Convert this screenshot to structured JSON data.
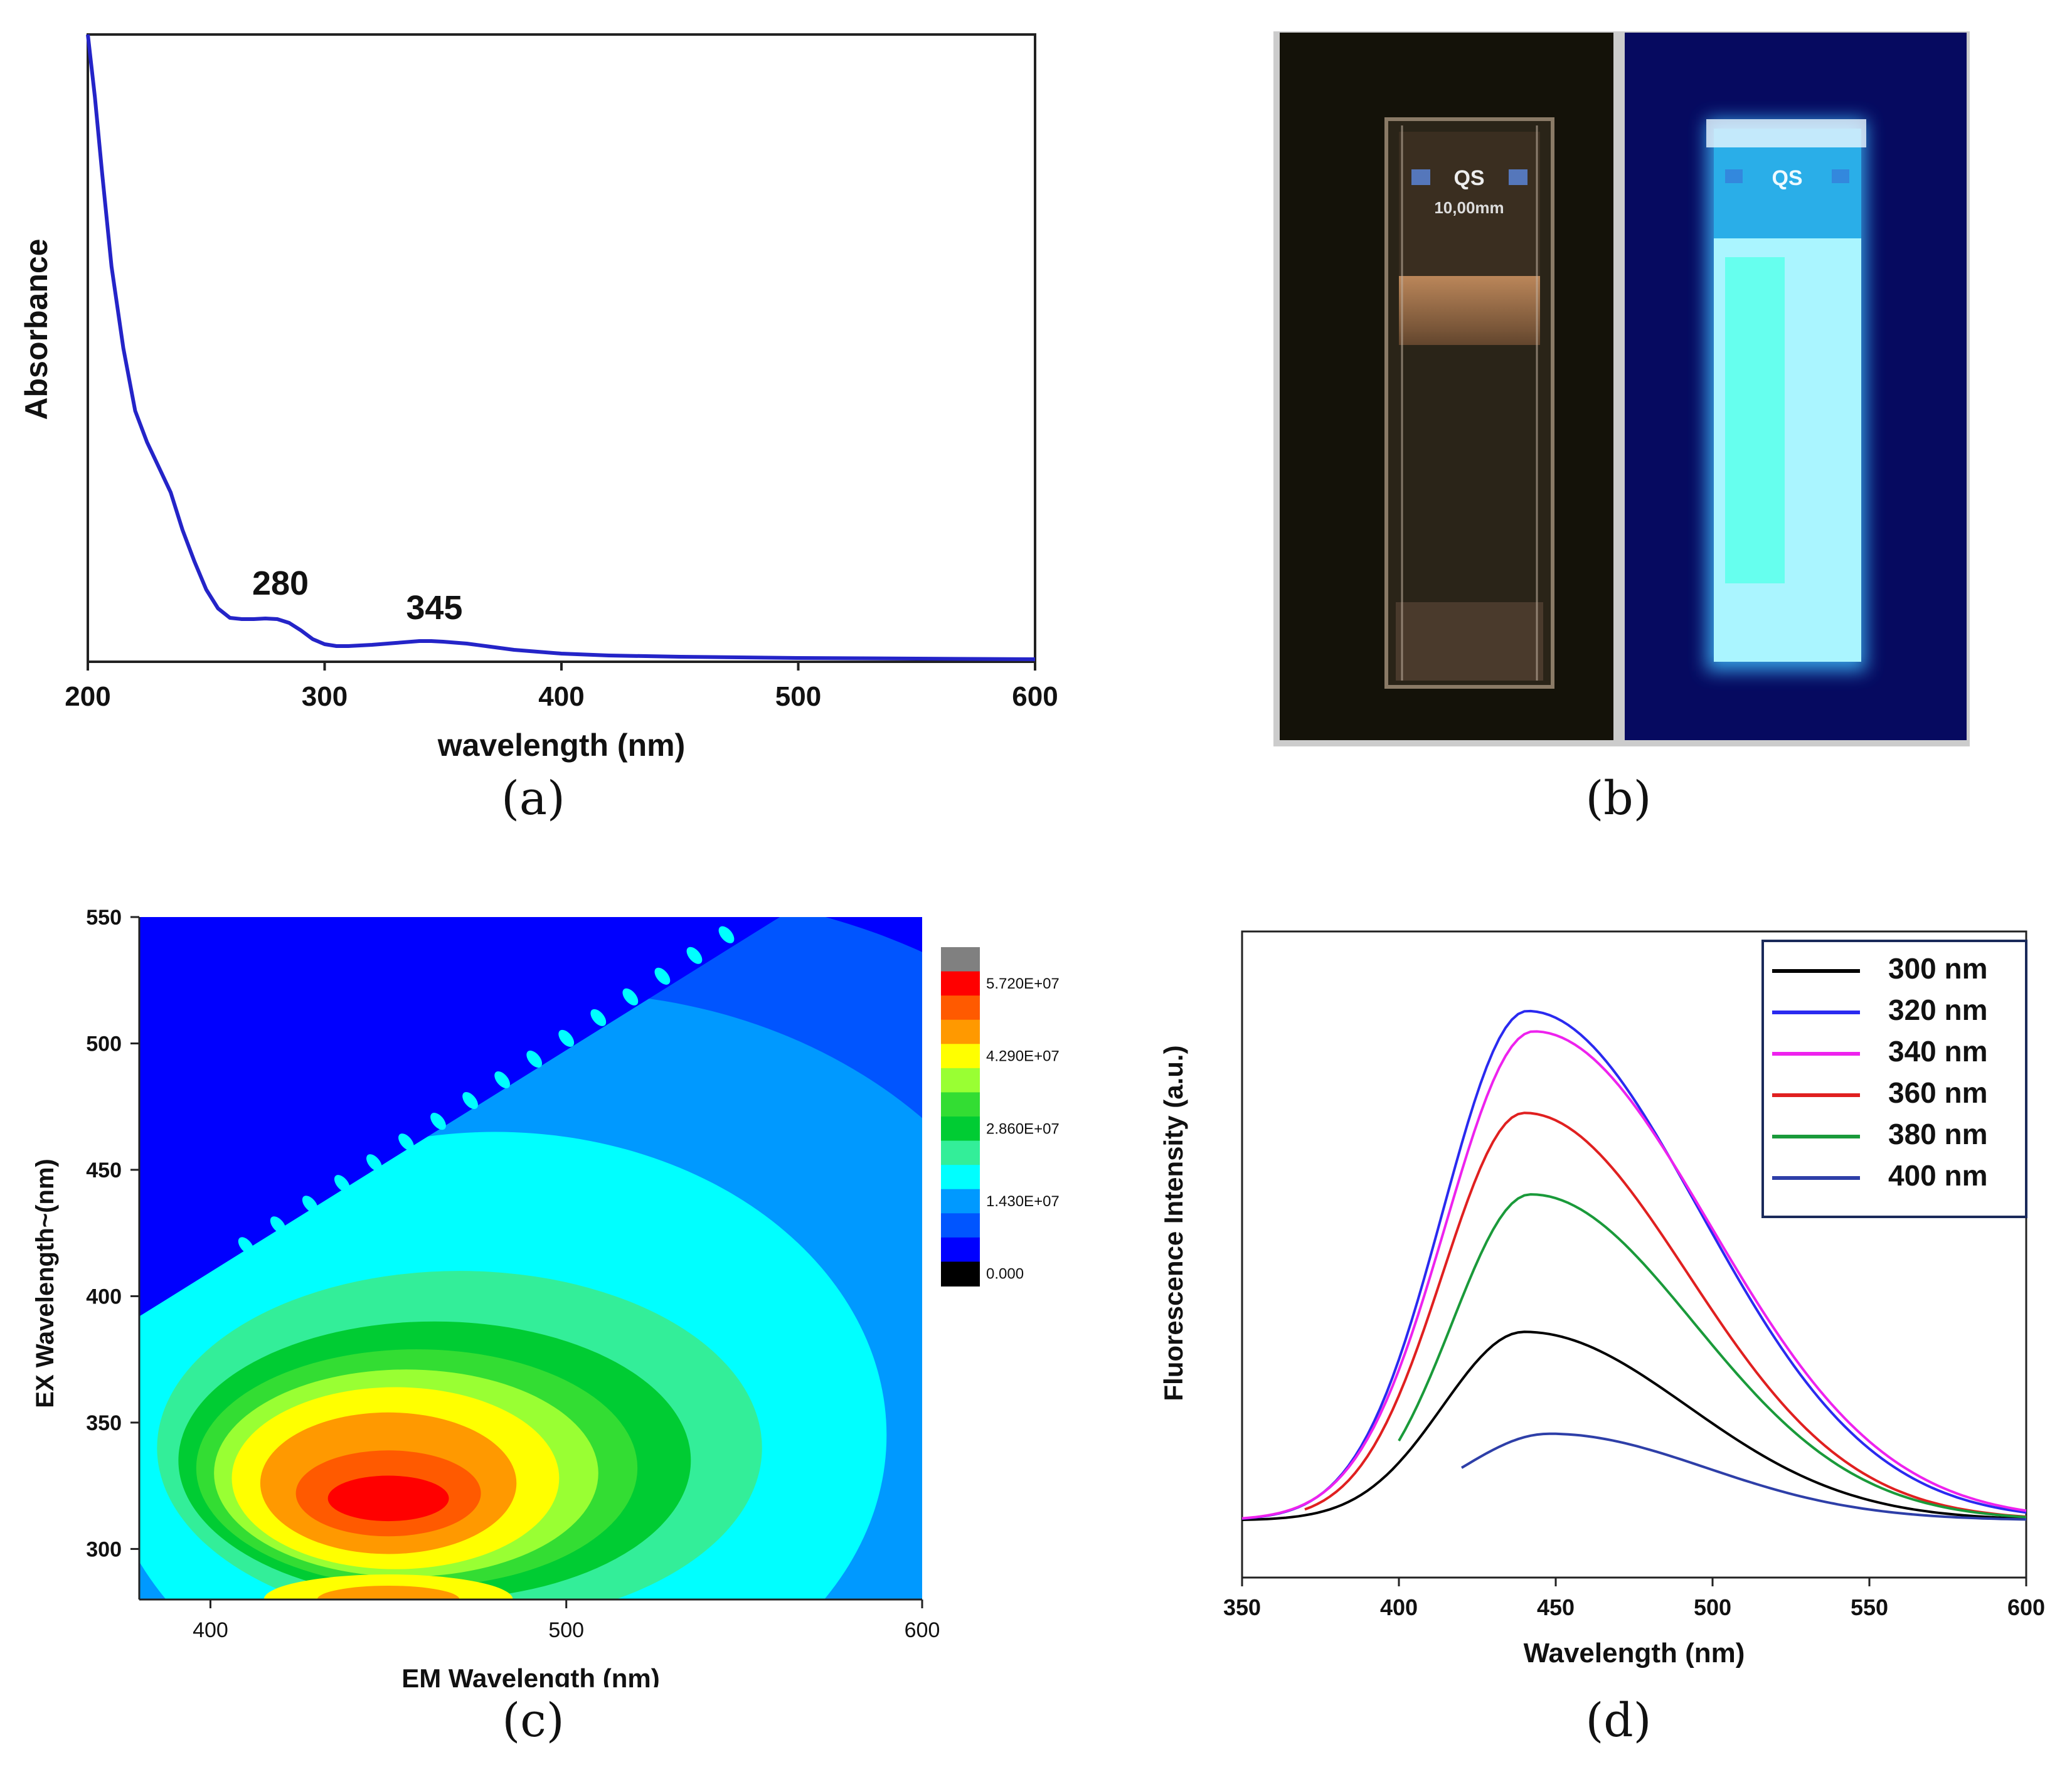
{
  "captions": {
    "a": "(a)",
    "b": "(b)",
    "c": "(c)",
    "d": "(d)"
  },
  "chart_data": [
    {
      "panel": "a",
      "type": "line",
      "xlabel": "wavelength (nm)",
      "ylabel": "Absorbance",
      "xlim": [
        200,
        600
      ],
      "ylim": [
        0,
        1
      ],
      "xticks": [
        200,
        300,
        400,
        500,
        600
      ],
      "grid": false,
      "color": "#2424c8",
      "annotations": [
        {
          "text": "280",
          "x": 280,
          "y": 0.072
        },
        {
          "text": "345",
          "x": 345,
          "y": 0.033
        }
      ],
      "series": [
        {
          "x": [
            200,
            203,
            206,
            210,
            215,
            220,
            225,
            230,
            235,
            240,
            245,
            250,
            255,
            260,
            265,
            270,
            275,
            280,
            285,
            290,
            295,
            300,
            305,
            310,
            320,
            330,
            340,
            345,
            350,
            360,
            370,
            380,
            400,
            420,
            450,
            500,
            550,
            600
          ],
          "values": [
            1.0,
            0.9,
            0.78,
            0.63,
            0.5,
            0.4,
            0.35,
            0.31,
            0.27,
            0.21,
            0.16,
            0.115,
            0.085,
            0.07,
            0.068,
            0.068,
            0.069,
            0.068,
            0.062,
            0.05,
            0.036,
            0.028,
            0.025,
            0.025,
            0.027,
            0.03,
            0.033,
            0.033,
            0.032,
            0.029,
            0.024,
            0.019,
            0.013,
            0.01,
            0.008,
            0.006,
            0.005,
            0.004
          ]
        }
      ]
    },
    {
      "panel": "c",
      "type": "heatmap",
      "xlabel": "EM Wavelength (nm)",
      "ylabel": "EX Wavelength~(nm)",
      "xlim": [
        380,
        600
      ],
      "ylim": [
        280,
        550
      ],
      "xticks": [
        400,
        500,
        600
      ],
      "yticks": [
        300,
        350,
        400,
        450,
        500,
        550
      ],
      "peak": {
        "em": 450,
        "ex": 320
      },
      "colorbar": {
        "labels": [
          "5.720E+07",
          "4.290E+07",
          "2.860E+07",
          "1.430E+07",
          "0.000"
        ],
        "levels": [
          "#808080",
          "#ff0000",
          "#ff5a00",
          "#ff9900",
          "#ffff00",
          "#99ff33",
          "#33dd33",
          "#00cc33",
          "#33ee99",
          "#00ffff",
          "#0099ff",
          "#0055ff",
          "#0000ff",
          "#000000"
        ]
      }
    },
    {
      "panel": "d",
      "type": "line",
      "xlabel": "Wavelength (nm)",
      "ylabel": "Fluorescence Intensity (a.u.)",
      "xlim": [
        350,
        600
      ],
      "ylim": [
        0,
        1
      ],
      "xticks": [
        350,
        400,
        450,
        500,
        550,
        600
      ],
      "legend": "top-right",
      "series": [
        {
          "name": "300 nm",
          "color": "#000000",
          "peak_x": 440,
          "peak_y": 0.37,
          "start_x": 350,
          "sig_l": 26,
          "sig_r": 52
        },
        {
          "name": "320 nm",
          "color": "#2a2af0",
          "peak_x": 441,
          "peak_y": 1.0,
          "start_x": 350,
          "sig_l": 27,
          "sig_r": 55
        },
        {
          "name": "340 nm",
          "color": "#ee22ee",
          "peak_x": 443,
          "peak_y": 0.96,
          "start_x": 350,
          "sig_l": 28,
          "sig_r": 56
        },
        {
          "name": "360 nm",
          "color": "#e02020",
          "peak_x": 440,
          "peak_y": 0.8,
          "start_x": 370,
          "sig_l": 26,
          "sig_r": 52
        },
        {
          "name": "380 nm",
          "color": "#1a9a3a",
          "peak_x": 442,
          "peak_y": 0.64,
          "start_x": 400,
          "sig_l": 25,
          "sig_r": 52
        },
        {
          "name": "400 nm",
          "color": "#2e3fa8",
          "peak_x": 448,
          "peak_y": 0.17,
          "start_x": 420,
          "sig_l": 28,
          "sig_r": 50
        }
      ]
    }
  ],
  "photo": {
    "left_label_top": "QS",
    "left_label_bottom": "10,00mm",
    "right_label_top": "QS"
  }
}
